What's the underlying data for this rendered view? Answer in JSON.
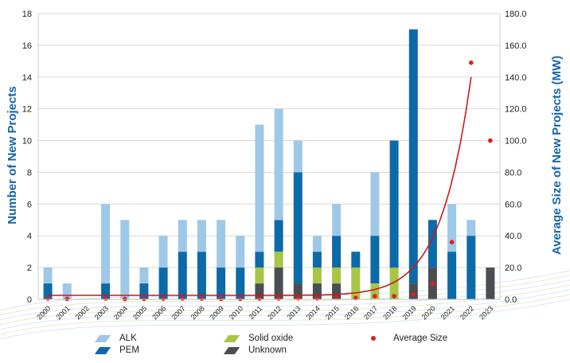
{
  "colors": {
    "alk": "#9fc8e8",
    "pem": "#0d6aa8",
    "solid_oxide": "#a8c545",
    "unknown": "#4a4e52",
    "average": "#e11d1d",
    "axis_title": "#1565a8"
  },
  "chart_data": {
    "type": "bar",
    "stacked": true,
    "title": "",
    "ylabel": "Number of New Projects",
    "y2label": "Average Size of New Projects (MW)",
    "ylim": [
      0,
      18
    ],
    "y2lim": [
      0,
      180
    ],
    "yticks": [
      "0",
      "2",
      "4",
      "6",
      "8",
      "10",
      "12",
      "14",
      "16",
      "18"
    ],
    "y2ticks": [
      "0.0",
      "20.0",
      "40.0",
      "60.0",
      "80.0",
      "100.0",
      "120.0",
      "140.0",
      "160.0",
      "180.0"
    ],
    "categories": [
      "2000",
      "2001",
      "2002",
      "2003",
      "2004",
      "2005",
      "2006",
      "2007",
      "2008",
      "2009",
      "2010",
      "2011",
      "2012",
      "2013",
      "2014",
      "2015",
      "2016",
      "2017",
      "2018",
      "2019",
      "2020",
      "2021",
      "2022",
      "2023"
    ],
    "series": [
      {
        "name": "Unknown",
        "values": [
          0,
          0,
          0,
          0,
          0,
          0,
          0,
          0,
          0,
          0,
          0,
          1,
          2,
          1,
          1,
          1,
          0,
          0,
          0,
          1,
          2,
          0,
          0,
          2
        ]
      },
      {
        "name": "Solid oxide",
        "values": [
          0,
          0,
          0,
          0,
          0,
          0,
          0,
          0,
          0,
          0,
          0,
          1,
          1,
          0,
          1,
          1,
          2,
          1,
          2,
          0,
          0,
          0,
          0,
          0
        ]
      },
      {
        "name": "PEM",
        "values": [
          1,
          0,
          0,
          1,
          0,
          1,
          2,
          3,
          3,
          2,
          2,
          1,
          2,
          7,
          1,
          2,
          1,
          3,
          8,
          16,
          3,
          3,
          4,
          0
        ]
      },
      {
        "name": "ALK",
        "values": [
          1,
          1,
          0,
          5,
          5,
          1,
          2,
          2,
          2,
          3,
          2,
          8,
          7,
          2,
          1,
          2,
          0,
          4,
          0,
          0,
          0,
          3,
          1,
          0
        ]
      }
    ],
    "average_size": [
      0.5,
      0.3,
      null,
      0.5,
      0.2,
      0.3,
      0.4,
      0.5,
      0.4,
      0.3,
      0.3,
      0.4,
      0.5,
      0.7,
      0.6,
      1.0,
      0.8,
      2.0,
      2.0,
      3.0,
      10.0,
      36.0,
      149.0,
      100.0
    ],
    "trendline": "exponential",
    "legend": {
      "position": "bottom",
      "entries": [
        "ALK",
        "PEM",
        "Solid oxide",
        "Unknown",
        "Average Size"
      ]
    }
  }
}
